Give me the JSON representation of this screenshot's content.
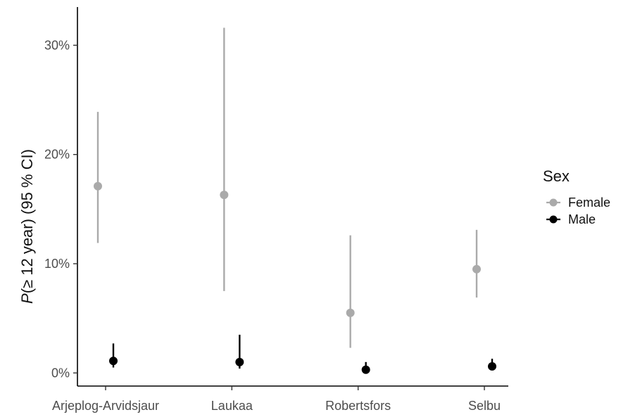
{
  "chart_data": {
    "type": "scatter",
    "subtype": "point-range",
    "title": "",
    "xlabel": "",
    "ylabel_italic": "P",
    "ylabel_rest": "(≥ 12 year) (95 % CI)",
    "categories": [
      "Arjeplog-Arvidsjaur",
      "Laukaa",
      "Robertsfors",
      "Selbu"
    ],
    "ylim": [
      -0.012,
      0.335
    ],
    "yticks": [
      {
        "value": 0.0,
        "label": "0%"
      },
      {
        "value": 0.1,
        "label": "10%"
      },
      {
        "value": 0.2,
        "label": "20%"
      },
      {
        "value": 0.3,
        "label": "30%"
      }
    ],
    "grid": false,
    "legend": {
      "title": "Sex",
      "position": "right"
    },
    "series": [
      {
        "name": "Female",
        "color": "#aaaaaa",
        "points": [
          {
            "category": "Arjeplog-Arvidsjaur",
            "estimate": 0.171,
            "lower": 0.119,
            "upper": 0.239
          },
          {
            "category": "Laukaa",
            "estimate": 0.163,
            "lower": 0.075,
            "upper": 0.316
          },
          {
            "category": "Robertsfors",
            "estimate": 0.055,
            "lower": 0.023,
            "upper": 0.126
          },
          {
            "category": "Selbu",
            "estimate": 0.095,
            "lower": 0.069,
            "upper": 0.131
          }
        ]
      },
      {
        "name": "Male",
        "color": "#000000",
        "points": [
          {
            "category": "Arjeplog-Arvidsjaur",
            "estimate": 0.011,
            "lower": 0.005,
            "upper": 0.027
          },
          {
            "category": "Laukaa",
            "estimate": 0.01,
            "lower": 0.004,
            "upper": 0.035
          },
          {
            "category": "Robertsfors",
            "estimate": 0.003,
            "lower": 0.001,
            "upper": 0.01
          },
          {
            "category": "Selbu",
            "estimate": 0.006,
            "lower": 0.003,
            "upper": 0.013
          }
        ]
      }
    ]
  }
}
